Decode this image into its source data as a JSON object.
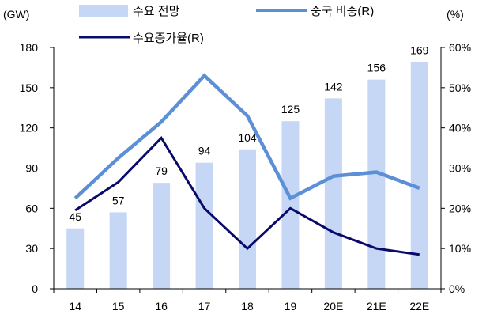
{
  "chart_data": {
    "type": "bar",
    "categories": [
      "14",
      "15",
      "16",
      "17",
      "18",
      "19",
      "20E",
      "21E",
      "22E"
    ],
    "series": [
      {
        "name": "수요 전망",
        "kind": "bar",
        "axis": "left",
        "color": "#c5d7f4",
        "values": [
          45,
          57,
          79,
          94,
          104,
          125,
          142,
          156,
          169
        ]
      },
      {
        "name": "중국 비중(R)",
        "kind": "line",
        "axis": "right",
        "color": "#5b8fd6",
        "values": [
          22.5,
          32.5,
          41.5,
          53.0,
          43.0,
          22.5,
          28.0,
          29.0,
          25.0
        ]
      },
      {
        "name": "수요증가율(R)",
        "kind": "line",
        "axis": "right",
        "color": "#0a0a6b",
        "values": [
          19.5,
          26.5,
          37.5,
          20.0,
          10.0,
          20.0,
          14.0,
          10.0,
          8.5
        ]
      }
    ],
    "left_axis": {
      "unit": "(GW)",
      "ticks": [
        "0",
        "30",
        "60",
        "90",
        "120",
        "150",
        "180"
      ],
      "ylim": [
        0,
        180
      ]
    },
    "right_axis": {
      "unit": "(%)",
      "ticks": [
        "0%",
        "10%",
        "20%",
        "30%",
        "40%",
        "50%",
        "60%"
      ],
      "ylim": [
        0,
        60
      ]
    },
    "bar_labels": [
      "45",
      "57",
      "79",
      "94",
      "104",
      "125",
      "142",
      "156",
      "169"
    ],
    "grid": false,
    "legend_position": "top"
  }
}
